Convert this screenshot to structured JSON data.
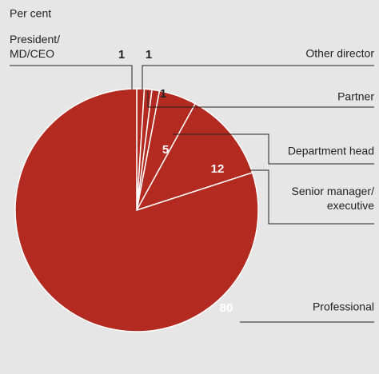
{
  "chart_data": {
    "type": "pie",
    "subtitle": "Per cent",
    "categories": [
      "President/\nMD/CEO",
      "Other director",
      "Partner",
      "Department head",
      "Senior manager/\nexecutive",
      "Professional"
    ],
    "values": [
      1,
      1,
      1,
      5,
      12,
      80
    ],
    "color": "#b22a20"
  }
}
